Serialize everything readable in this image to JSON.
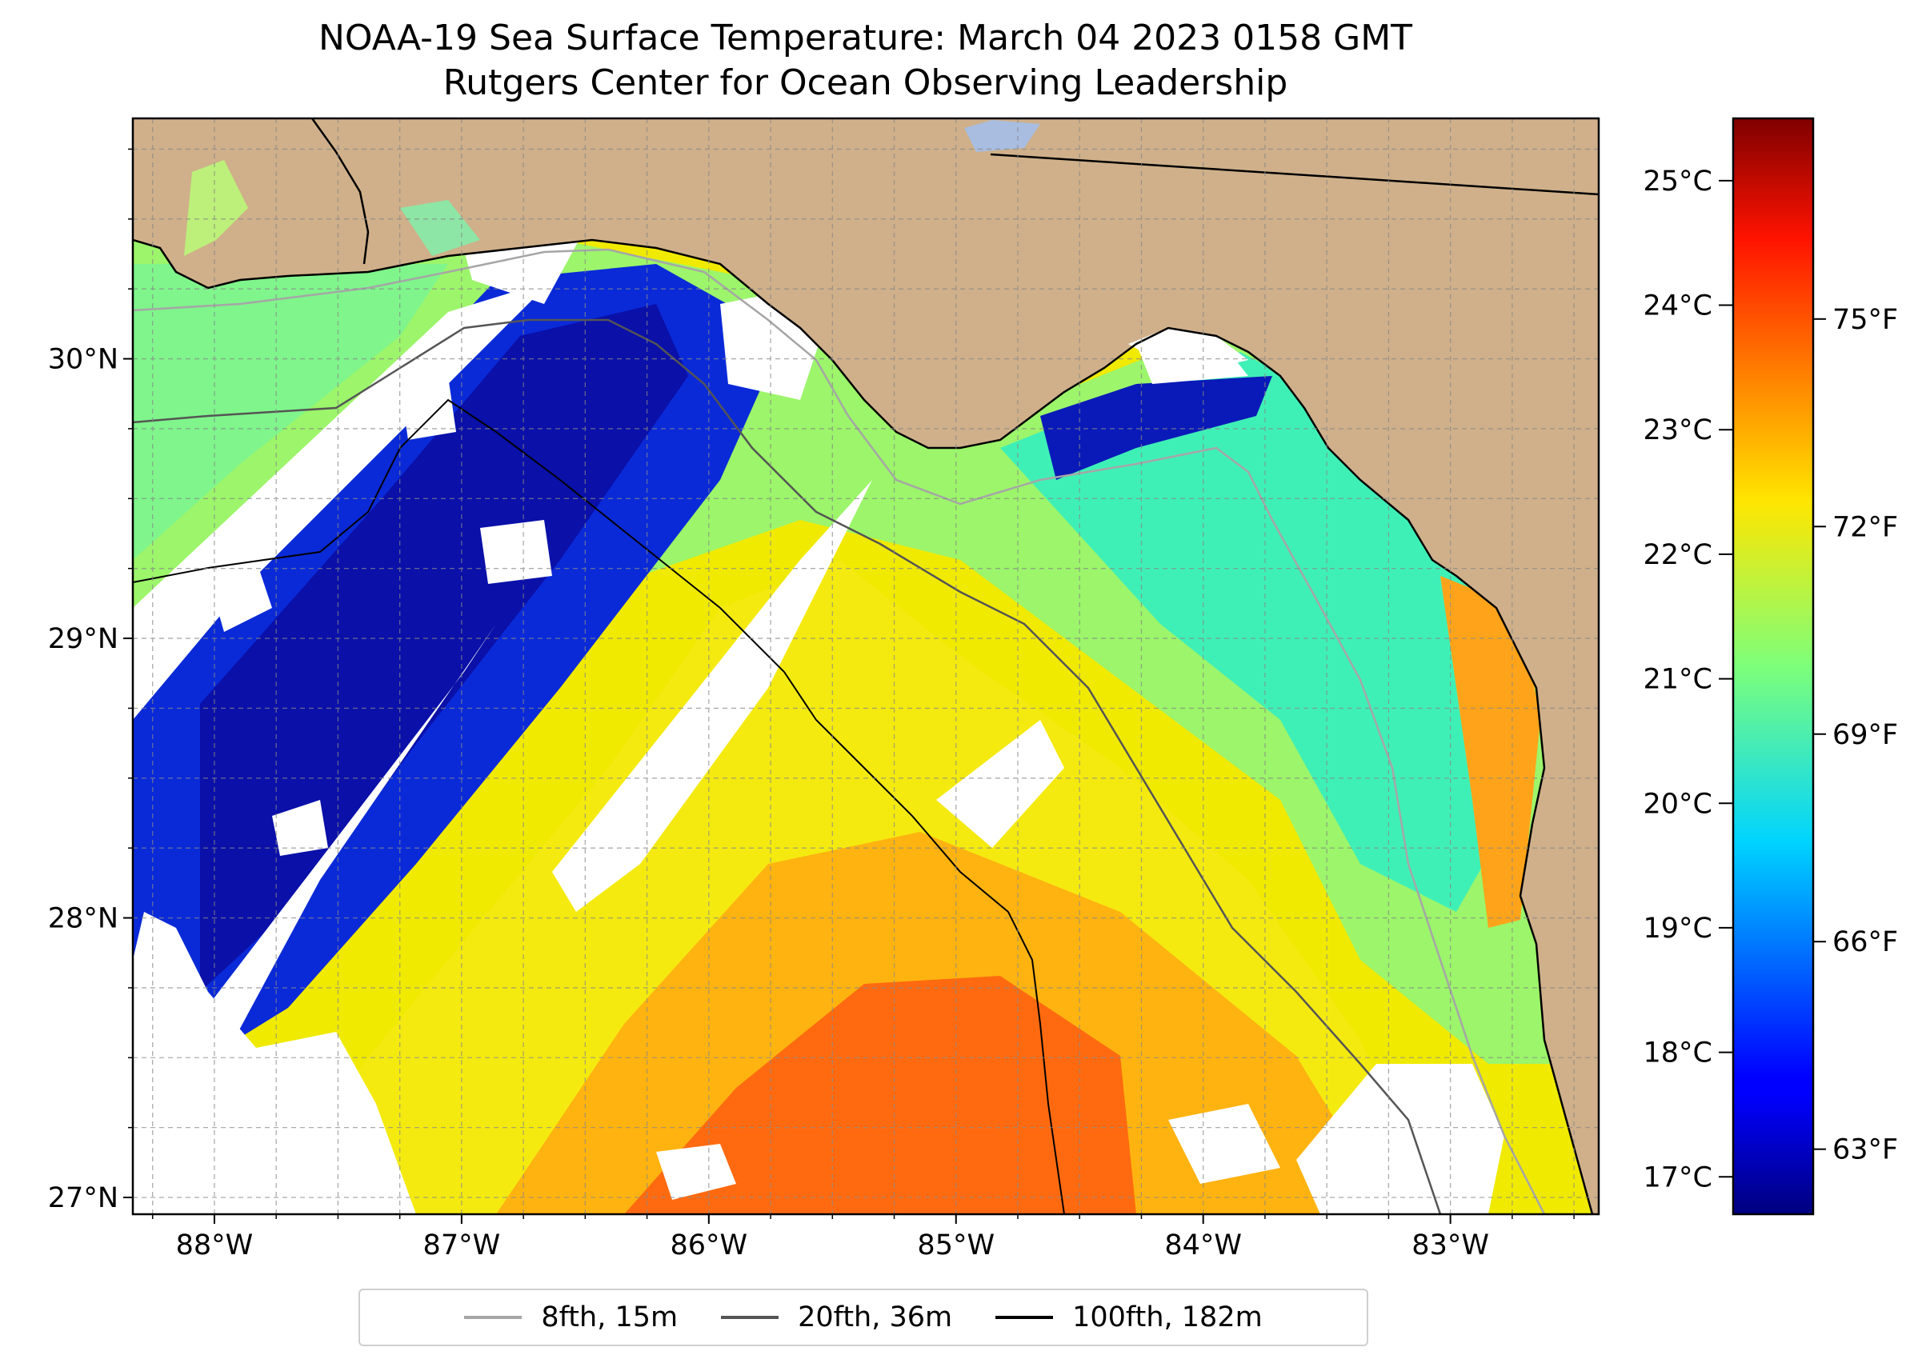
{
  "title": "NOAA-19 Sea Surface Temperature: March 04 2023 0158 GMT",
  "subtitle": "Rutgers Center for Ocean Observing Leadership",
  "map": {
    "lon_range": [
      -88.33,
      -82.4
    ],
    "lat_range": [
      26.94,
      30.86
    ],
    "land_color": "#cfb08a",
    "no_data_color": "#ffffff",
    "gridlines": true,
    "lon_ticks": [
      {
        "value": -88,
        "label": "88°W"
      },
      {
        "value": -87,
        "label": "87°W"
      },
      {
        "value": -86,
        "label": "86°W"
      },
      {
        "value": -85,
        "label": "85°W"
      },
      {
        "value": -84,
        "label": "84°W"
      },
      {
        "value": -83,
        "label": "83°W"
      }
    ],
    "lat_ticks": [
      {
        "value": 30,
        "label": "30°N"
      },
      {
        "value": 29,
        "label": "29°N"
      },
      {
        "value": 28,
        "label": "28°N"
      },
      {
        "value": 27,
        "label": "27°N"
      }
    ]
  },
  "colorbar": {
    "colormap": "jet",
    "celsius_range": [
      16.7,
      25.5
    ],
    "celsius_ticks": [
      {
        "value": 17,
        "label": "17°C"
      },
      {
        "value": 18,
        "label": "18°C"
      },
      {
        "value": 19,
        "label": "19°C"
      },
      {
        "value": 20,
        "label": "20°C"
      },
      {
        "value": 21,
        "label": "21°C"
      },
      {
        "value": 22,
        "label": "22°C"
      },
      {
        "value": 23,
        "label": "23°C"
      },
      {
        "value": 24,
        "label": "24°C"
      },
      {
        "value": 25,
        "label": "25°C"
      }
    ],
    "fahrenheit_ticks": [
      {
        "value": 63,
        "label": "63°F"
      },
      {
        "value": 66,
        "label": "66°F"
      },
      {
        "value": 69,
        "label": "69°F"
      },
      {
        "value": 72,
        "label": "72°F"
      },
      {
        "value": 75,
        "label": "75°F"
      }
    ]
  },
  "legend": {
    "position": "bottom-center",
    "items": [
      {
        "label": "8fth, 15m",
        "color": "#a6a6a6"
      },
      {
        "label": "20fth, 36m",
        "color": "#555555"
      },
      {
        "label": "100fth, 182m",
        "color": "#000000"
      }
    ]
  }
}
